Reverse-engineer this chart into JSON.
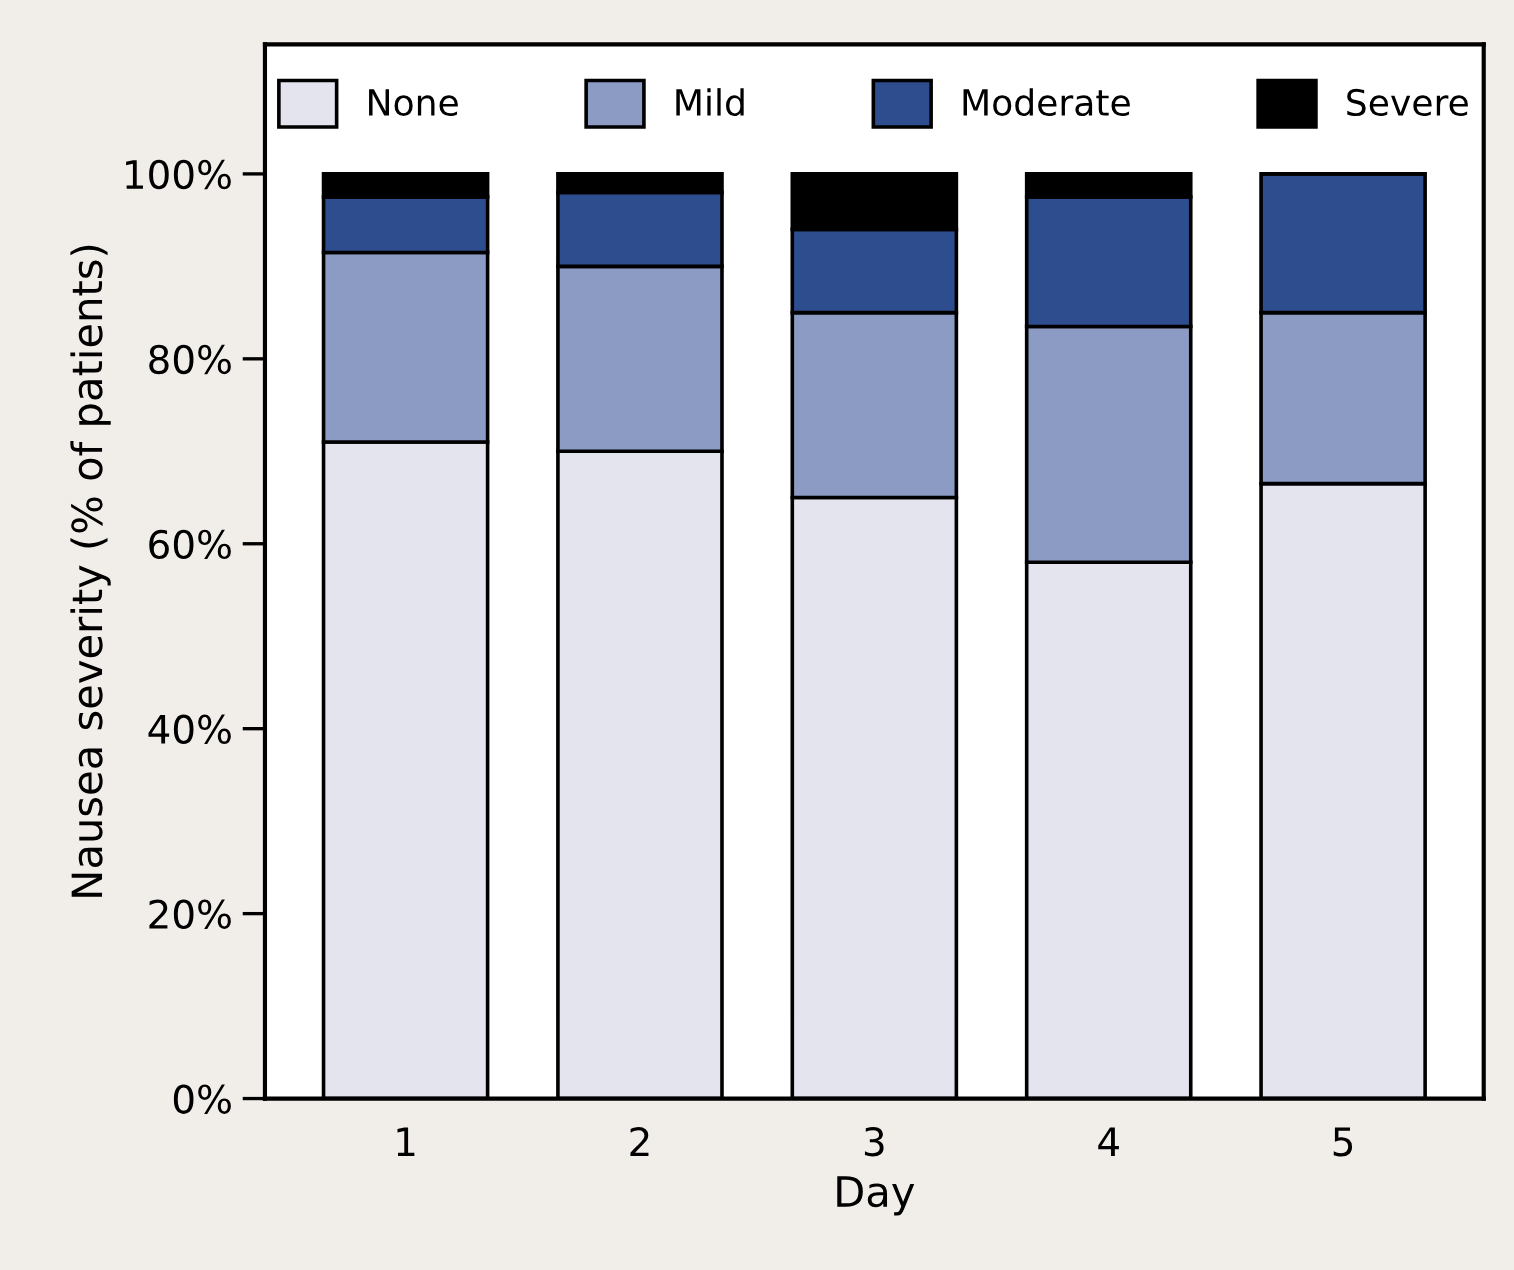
{
  "chart_data": {
    "type": "bar",
    "stacked": true,
    "xlabel": "Day",
    "ylabel": "Nausea severity (% of patients)",
    "categories": [
      "1",
      "2",
      "3",
      "4",
      "5"
    ],
    "series": [
      {
        "name": "None",
        "color": "#e4e4ef",
        "values": [
          71,
          70,
          65,
          58,
          66.5
        ]
      },
      {
        "name": "Mild",
        "color": "#8b9bc4",
        "values": [
          20.5,
          20,
          20,
          25.5,
          18.5
        ]
      },
      {
        "name": "Moderate",
        "color": "#2e4d8e",
        "values": [
          6,
          8,
          9,
          14,
          15
        ]
      },
      {
        "name": "Severe",
        "color": "#000000",
        "values": [
          2.5,
          2,
          6,
          2.5,
          0
        ]
      }
    ],
    "ylim": [
      0,
      114
    ],
    "yticks": [
      {
        "value": 0,
        "label": "0%"
      },
      {
        "value": 20,
        "label": "20%"
      },
      {
        "value": 40,
        "label": "40%"
      },
      {
        "value": 60,
        "label": "60%"
      },
      {
        "value": 80,
        "label": "80%"
      },
      {
        "value": 100,
        "label": "100%"
      }
    ],
    "legend": "top",
    "grid": false
  }
}
